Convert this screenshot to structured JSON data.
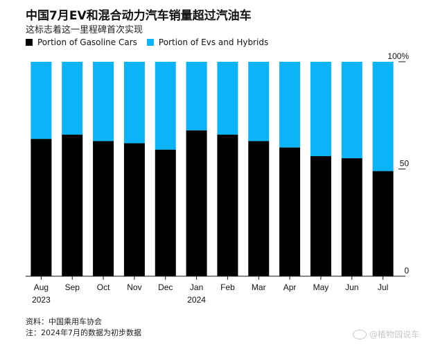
{
  "title": "中国7月EV和混合动力汽车销量超过汽油车",
  "subtitle": "这标志着这一里程碑首次实现",
  "legend": {
    "gasoline": "Portion of Gasoline Cars",
    "ev": "Portion of Evs and Hybrids"
  },
  "colors": {
    "gasoline": "#000000",
    "ev": "#0ab4f7"
  },
  "chart_data": {
    "type": "bar",
    "stacked": true,
    "title": "中国7月EV和混合动力汽车销量超过汽油车",
    "subtitle": "这标志着这一里程碑首次实现",
    "categories": [
      "Aug",
      "Sep",
      "Oct",
      "Nov",
      "Dec",
      "Jan",
      "Feb",
      "Mar",
      "Apr",
      "May",
      "Jun",
      "Jul"
    ],
    "year_labels": {
      "Aug": "2023",
      "Jan": "2024"
    },
    "series": [
      {
        "name": "Portion of Gasoline Cars",
        "values": [
          64,
          66,
          63,
          62,
          59,
          68,
          66,
          63,
          60,
          56,
          55,
          49
        ]
      },
      {
        "name": "Portion of Evs and Hybrids",
        "values": [
          36,
          34,
          37,
          38,
          41,
          32,
          34,
          37,
          40,
          44,
          45,
          51
        ]
      }
    ],
    "ylim": [
      0,
      100
    ],
    "y_ticks": [
      0,
      50,
      100
    ],
    "y_tick_labels": [
      "0",
      "50",
      "100%"
    ],
    "y_axis_position": "right",
    "legend_position": "top-left"
  },
  "footer": {
    "source": "资料：中国乘用车协会",
    "note": "注：2024年7月的数据为初步数据"
  },
  "watermark": "@植物园说车"
}
